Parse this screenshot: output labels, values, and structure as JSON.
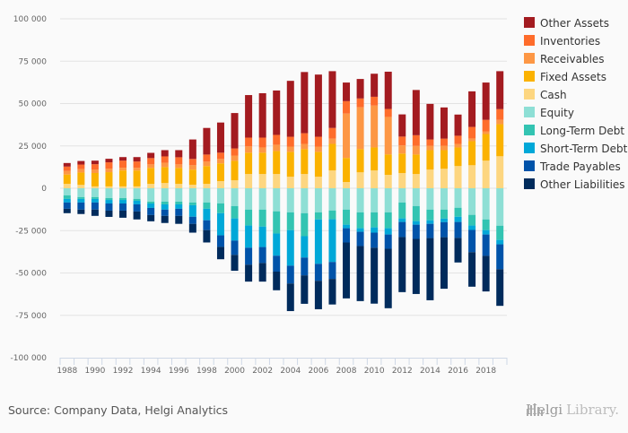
{
  "chart_data": {
    "type": "bar",
    "stacked": true,
    "title": "",
    "xlabel": "",
    "ylabel": "",
    "ylim": [
      -100000,
      100000
    ],
    "yticks": [
      100000,
      75000,
      50000,
      25000,
      0,
      -25000,
      -50000,
      -75000,
      -100000
    ],
    "ytick_labels": [
      "100 000",
      "75 000",
      "50 000",
      "25 000",
      "0",
      "-25 000",
      "-50 000",
      "-75 000",
      "-100 000"
    ],
    "categories": [
      "1988",
      "1989",
      "1990",
      "1991",
      "1992",
      "1993",
      "1994",
      "1995",
      "1996",
      "1997",
      "1998",
      "1999",
      "2000",
      "2001",
      "2002",
      "2003",
      "2004",
      "2005",
      "2006",
      "2007",
      "2008",
      "2009",
      "2010",
      "2011",
      "2012",
      "2013",
      "2014",
      "2015",
      "2016",
      "2017",
      "2018",
      "2019"
    ],
    "xtick_labels": [
      "1988",
      "1990",
      "1992",
      "1994",
      "1996",
      "1998",
      "2000",
      "2002",
      "2004",
      "2006",
      "2008",
      "2010",
      "2012",
      "2014",
      "2016",
      "2018"
    ],
    "grid": true,
    "legend_position": "right",
    "series": [
      {
        "name": "Cash",
        "color": "#fdd680",
        "side": "positive",
        "values": [
          2600,
          2000,
          1100,
          1100,
          1100,
          1100,
          2600,
          3100,
          2600,
          2100,
          2600,
          4200,
          4700,
          8400,
          8400,
          8400,
          6800,
          8400,
          6800,
          10500,
          3700,
          9400,
          10500,
          7900,
          9000,
          8400,
          11000,
          11500,
          13100,
          13600,
          16300,
          18900
        ]
      },
      {
        "name": "Fixed Assets",
        "color": "#fbb200",
        "side": "positive",
        "values": [
          5500,
          7300,
          7900,
          8400,
          9400,
          9400,
          9400,
          9400,
          9400,
          8900,
          10500,
          10500,
          11500,
          12600,
          12600,
          13600,
          14700,
          14700,
          14700,
          15700,
          14200,
          13700,
          13600,
          12100,
          11500,
          11500,
          11500,
          11000,
          11000,
          14200,
          15700,
          18900
        ]
      },
      {
        "name": "Receivables",
        "color": "#fd9745",
        "side": "positive",
        "values": [
          2100,
          2100,
          2100,
          2100,
          1600,
          1600,
          2100,
          2600,
          2100,
          2600,
          2600,
          2600,
          3100,
          3700,
          3100,
          3700,
          3100,
          3100,
          3100,
          3100,
          26200,
          24700,
          24700,
          22100,
          4800,
          5100,
          2600,
          2600,
          2100,
          1600,
          1600,
          2600
        ]
      },
      {
        "name": "Inventories",
        "color": "#fe6c2b",
        "side": "positive",
        "values": [
          2600,
          2600,
          3100,
          3700,
          4200,
          3700,
          3700,
          3700,
          4200,
          3700,
          4200,
          3700,
          4200,
          5200,
          5800,
          5800,
          5800,
          6300,
          5800,
          6300,
          7300,
          5200,
          5200,
          4700,
          5200,
          6300,
          3700,
          4200,
          4800,
          6800,
          6800,
          6300
        ]
      },
      {
        "name": "Other Assets",
        "color": "#a31b20",
        "side": "positive",
        "values": [
          2100,
          2100,
          2100,
          2100,
          2100,
          2600,
          3100,
          3700,
          4200,
          11500,
          15700,
          17800,
          20900,
          25100,
          26200,
          26200,
          33000,
          36100,
          36700,
          33500,
          11000,
          11500,
          13600,
          22000,
          13100,
          26700,
          21000,
          18400,
          12500,
          21000,
          22000,
          22400
        ]
      },
      {
        "name": "Equity",
        "color": "#8edfd5",
        "side": "negative",
        "values": [
          -4200,
          -5200,
          -5200,
          -5800,
          -5800,
          -6300,
          -7900,
          -7900,
          -7900,
          -8400,
          -8400,
          -8900,
          -10500,
          -12600,
          -12600,
          -13600,
          -14200,
          -14700,
          -14200,
          -13100,
          -12600,
          -14200,
          -14200,
          -14200,
          -8400,
          -10500,
          -12600,
          -12600,
          -11500,
          -15700,
          -18400,
          -22100
        ]
      },
      {
        "name": "Long-Term Debt",
        "color": "#33c4b2",
        "side": "negative",
        "values": [
          -2100,
          -1100,
          -1100,
          -1100,
          -1100,
          -1100,
          -1100,
          -1600,
          -1600,
          -1600,
          -3700,
          -5800,
          -7300,
          -9400,
          -10000,
          -13100,
          -10500,
          -13600,
          -4200,
          -5200,
          -8900,
          -9400,
          -8900,
          -9400,
          -9400,
          -8900,
          -6300,
          -5300,
          -5300,
          -6300,
          -6300,
          -8400
        ]
      },
      {
        "name": "Short-Term Debt",
        "color": "#00a8d8",
        "side": "negative",
        "values": [
          -2100,
          -2100,
          -2100,
          -2100,
          -2100,
          -2100,
          -2600,
          -3100,
          -2600,
          -6800,
          -6800,
          -13100,
          -13100,
          -13100,
          -12100,
          -13100,
          -21000,
          -12600,
          -26200,
          -25200,
          -2100,
          -2100,
          -3100,
          -3700,
          -2100,
          -2100,
          -2100,
          -2100,
          -3100,
          -2600,
          -2600,
          -2600
        ]
      },
      {
        "name": "Trade Payables",
        "color": "#0053a9",
        "side": "negative",
        "values": [
          -3700,
          -4200,
          -4200,
          -4200,
          -4200,
          -4200,
          -4200,
          -3700,
          -4200,
          -4200,
          -5800,
          -6800,
          -8400,
          -10000,
          -9400,
          -9400,
          -10500,
          -10500,
          -10000,
          -10000,
          -8400,
          -8400,
          -8900,
          -8400,
          -8900,
          -8400,
          -8400,
          -8900,
          -9400,
          -13100,
          -12600,
          -14700
        ]
      },
      {
        "name": "Other Liabilities",
        "color": "#002b5c",
        "side": "negative",
        "values": [
          -2600,
          -2600,
          -3700,
          -3700,
          -4200,
          -4700,
          -3700,
          -4200,
          -4700,
          -5200,
          -7300,
          -7300,
          -9400,
          -10000,
          -11000,
          -11000,
          -16300,
          -16800,
          -16800,
          -15100,
          -33000,
          -32500,
          -33000,
          -35100,
          -32500,
          -32500,
          -36700,
          -30400,
          -14500,
          -20400,
          -21000,
          -21600
        ]
      }
    ]
  },
  "footer": {
    "source": "Source: Company Data, Helgi Analytics",
    "brand_main": "Helgi",
    "brand_sub": "Library."
  }
}
